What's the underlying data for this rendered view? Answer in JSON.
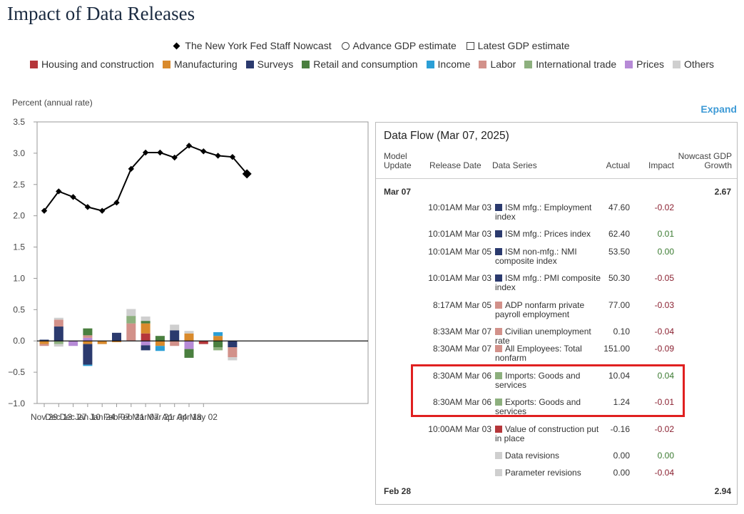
{
  "title": "Impact of Data Releases",
  "legend_top": {
    "nowcast": "The New York Fed Staff Nowcast",
    "advance": "Advance GDP estimate",
    "latest": "Latest GDP estimate"
  },
  "categories": [
    {
      "label": "Housing and construction",
      "color": "#b5363a"
    },
    {
      "label": "Manufacturing",
      "color": "#d98a2c"
    },
    {
      "label": "Surveys",
      "color": "#2b3a6e"
    },
    {
      "label": "Retail and consumption",
      "color": "#4a7f3f"
    },
    {
      "label": "Income",
      "color": "#2b9fd6"
    },
    {
      "label": "Labor",
      "color": "#d2918a"
    },
    {
      "label": "International trade",
      "color": "#8db07e"
    },
    {
      "label": "Prices",
      "color": "#b68ad6"
    },
    {
      "label": "Others",
      "color": "#cfcfcf"
    }
  ],
  "y_axis_label": "Percent (annual rate)",
  "expand_label": "Expand",
  "chart_data": {
    "type": "line",
    "ylim": [
      -1.0,
      3.5
    ],
    "yticks": [
      "3.5",
      "3.0",
      "2.5",
      "2.0",
      "1.5",
      "1.0",
      "0.5",
      "0.0",
      "−0.5",
      "−1.0"
    ],
    "xticks": [
      "Nov 29",
      "Dec 13",
      "Dec 27",
      "Jan 10",
      "Jan 24",
      "Feb 07",
      "Feb 21",
      "Mar 07",
      "Mar 21",
      "Apr 04",
      "Apr 18",
      "May 02"
    ],
    "series": [
      {
        "name": "The New York Fed Staff Nowcast",
        "x": [
          "Nov 29",
          "Dec 06",
          "Dec 13",
          "Dec 20",
          "Dec 27",
          "Jan 03",
          "Jan 10",
          "Jan 17",
          "Jan 24",
          "Jan 31",
          "Feb 07",
          "Feb 14",
          "Feb 21",
          "Feb 28",
          "Mar 07"
        ],
        "values": [
          2.08,
          2.39,
          2.3,
          2.14,
          2.08,
          2.21,
          2.75,
          3.01,
          3.01,
          2.93,
          3.12,
          3.03,
          2.96,
          2.94,
          2.67
        ]
      }
    ],
    "bars": [
      {
        "x": "Nov 29",
        "segments": [
          {
            "cat": "Manufacturing",
            "v": -0.05
          },
          {
            "cat": "Labor",
            "v": -0.03
          },
          {
            "cat": "Surveys",
            "v": 0.02
          }
        ]
      },
      {
        "x": "Dec 06",
        "segments": [
          {
            "cat": "Surveys",
            "v": 0.23
          },
          {
            "cat": "Labor",
            "v": 0.11
          },
          {
            "cat": "Others",
            "v": 0.03
          },
          {
            "cat": "International trade",
            "v": -0.05
          },
          {
            "cat": "Others",
            "v": -0.04
          }
        ]
      },
      {
        "x": "Dec 13",
        "segments": [
          {
            "cat": "Prices",
            "v": -0.08
          }
        ]
      },
      {
        "x": "Dec 20",
        "segments": [
          {
            "cat": "Prices",
            "v": 0.05
          },
          {
            "cat": "Labor",
            "v": 0.04
          },
          {
            "cat": "Retail and consumption",
            "v": 0.11
          },
          {
            "cat": "Manufacturing",
            "v": -0.05
          },
          {
            "cat": "Surveys",
            "v": -0.33
          },
          {
            "cat": "Income",
            "v": -0.02
          }
        ]
      },
      {
        "x": "Dec 27",
        "segments": [
          {
            "cat": "Manufacturing",
            "v": -0.05
          }
        ]
      },
      {
        "x": "Jan 03",
        "segments": [
          {
            "cat": "Surveys",
            "v": 0.13
          },
          {
            "cat": "Manufacturing",
            "v": -0.02
          }
        ]
      },
      {
        "x": "Jan 10",
        "segments": [
          {
            "cat": "Labor",
            "v": 0.28
          },
          {
            "cat": "International trade",
            "v": 0.12
          },
          {
            "cat": "Others",
            "v": 0.11
          }
        ]
      },
      {
        "x": "Jan 17",
        "segments": [
          {
            "cat": "Housing and construction",
            "v": 0.12
          },
          {
            "cat": "Manufacturing",
            "v": 0.16
          },
          {
            "cat": "Retail and consumption",
            "v": 0.04
          },
          {
            "cat": "Others",
            "v": 0.07
          },
          {
            "cat": "Prices",
            "v": -0.07
          },
          {
            "cat": "Surveys",
            "v": -0.08
          }
        ]
      },
      {
        "x": "Jan 24",
        "segments": [
          {
            "cat": "Retail and consumption",
            "v": 0.08
          },
          {
            "cat": "Manufacturing",
            "v": -0.08
          },
          {
            "cat": "Income",
            "v": -0.08
          }
        ]
      },
      {
        "x": "Jan 31",
        "segments": [
          {
            "cat": "Surveys",
            "v": 0.17
          },
          {
            "cat": "Others",
            "v": 0.09
          },
          {
            "cat": "Labor",
            "v": -0.08
          }
        ]
      },
      {
        "x": "Feb 07",
        "segments": [
          {
            "cat": "Manufacturing",
            "v": 0.12
          },
          {
            "cat": "Others",
            "v": 0.04
          },
          {
            "cat": "Prices",
            "v": -0.13
          },
          {
            "cat": "Retail and consumption",
            "v": -0.14
          }
        ]
      },
      {
        "x": "Feb 14",
        "segments": [
          {
            "cat": "Housing and construction",
            "v": -0.05
          }
        ]
      },
      {
        "x": "Feb 21",
        "segments": [
          {
            "cat": "Manufacturing",
            "v": 0.08
          },
          {
            "cat": "Income",
            "v": 0.06
          },
          {
            "cat": "Retail and consumption",
            "v": -0.1
          },
          {
            "cat": "International trade",
            "v": -0.05
          }
        ]
      },
      {
        "x": "Feb 28",
        "segments": [
          {
            "cat": "Surveys",
            "v": -0.1
          },
          {
            "cat": "Labor",
            "v": -0.16
          },
          {
            "cat": "Others",
            "v": -0.05
          }
        ]
      }
    ]
  },
  "panel": {
    "title": "Data Flow (Mar 07, 2025)",
    "headers": {
      "model_update": "Model Update",
      "release_date": "Release Date",
      "data_series": "Data Series",
      "actual": "Actual",
      "impact": "Impact",
      "nowcast": "Nowcast GDP Growth"
    },
    "group1": {
      "date": "Mar 07",
      "nowcast": "2.67"
    },
    "rows": [
      {
        "time": "10:01AM Mar 03",
        "series": "ISM mfg.: Employment index",
        "color": "#2b3a6e",
        "actual": "47.60",
        "impact": "-0.02",
        "sign": "neg"
      },
      {
        "time": "10:01AM Mar 03",
        "series": "ISM mfg.: Prices index",
        "color": "#2b3a6e",
        "actual": "62.40",
        "impact": "0.01",
        "sign": "pos"
      },
      {
        "time": "10:01AM Mar 05",
        "series": "ISM non-mfg.: NMI composite index",
        "color": "#2b3a6e",
        "actual": "53.50",
        "impact": "0.00",
        "sign": "pos"
      },
      {
        "time": "10:01AM Mar 03",
        "series": "ISM mfg.: PMI composite index",
        "color": "#2b3a6e",
        "actual": "50.30",
        "impact": "-0.05",
        "sign": "neg"
      },
      {
        "time": "8:17AM Mar 05",
        "series": "ADP nonfarm private payroll employment",
        "color": "#d2918a",
        "actual": "77.00",
        "impact": "-0.03",
        "sign": "neg"
      },
      {
        "time": "8:33AM Mar 07",
        "series": "Civilian unemployment rate",
        "color": "#d2918a",
        "actual": "0.10",
        "impact": "-0.04",
        "sign": "neg"
      },
      {
        "time": "8:30AM Mar 07",
        "series": "All Employees: Total nonfarm",
        "color": "#d2918a",
        "actual": "151.00",
        "impact": "-0.09",
        "sign": "neg"
      },
      {
        "time": "8:30AM Mar 06",
        "series": "Imports: Goods and services",
        "color": "#8db07e",
        "actual": "10.04",
        "impact": "0.04",
        "sign": "pos"
      },
      {
        "time": "8:30AM Mar 06",
        "series": "Exports: Goods and services",
        "color": "#8db07e",
        "actual": "1.24",
        "impact": "-0.01",
        "sign": "neg"
      },
      {
        "time": "10:00AM Mar 03",
        "series": "Value of construction put in place",
        "color": "#b5363a",
        "actual": "-0.16",
        "impact": "-0.02",
        "sign": "neg"
      },
      {
        "time": "",
        "series": "Data revisions",
        "color": "#cfcfcf",
        "actual": "0.00",
        "impact": "0.00",
        "sign": "pos"
      },
      {
        "time": "",
        "series": "Parameter revisions",
        "color": "#cfcfcf",
        "actual": "0.00",
        "impact": "-0.04",
        "sign": "neg"
      }
    ],
    "group2": {
      "date": "Feb 28",
      "nowcast": "2.94"
    }
  }
}
